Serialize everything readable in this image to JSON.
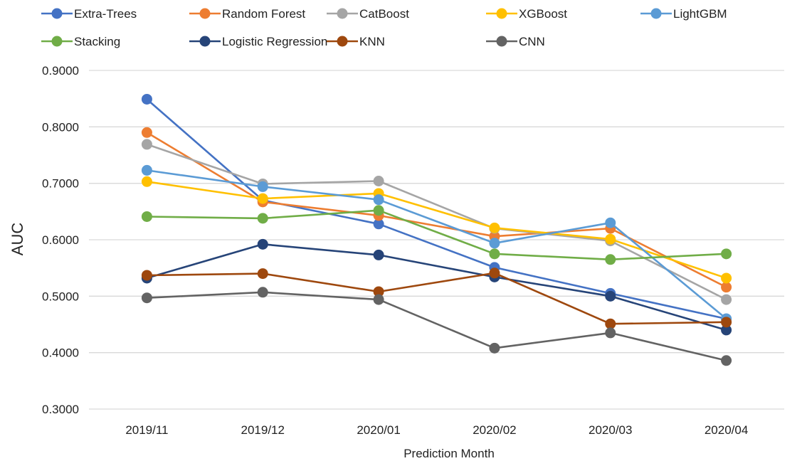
{
  "chart_data": {
    "type": "line",
    "xlabel": "Prediction Month",
    "ylabel": "AUC",
    "categories": [
      "2019/11",
      "2019/12",
      "2020/01",
      "2020/02",
      "2020/03",
      "2020/04"
    ],
    "ylim": [
      0.3,
      0.9
    ],
    "yticks": [
      "0.3000",
      "0.4000",
      "0.5000",
      "0.6000",
      "0.7000",
      "0.8000",
      "0.9000"
    ],
    "grid": true,
    "legend_position": "top",
    "series": [
      {
        "name": "Extra-Trees",
        "color": "#4472C4",
        "values": [
          0.849,
          0.67,
          0.628,
          0.551,
          0.505,
          0.46
        ]
      },
      {
        "name": "Random Forest",
        "color": "#ED7D31",
        "values": [
          0.79,
          0.667,
          0.643,
          0.606,
          0.62,
          0.516
        ]
      },
      {
        "name": "CatBoost",
        "color": "#A5A5A5",
        "values": [
          0.769,
          0.699,
          0.704,
          0.62,
          0.598,
          0.494
        ]
      },
      {
        "name": "XGBoost",
        "color": "#FFC000",
        "values": [
          0.703,
          0.673,
          0.682,
          0.621,
          0.601,
          0.532
        ]
      },
      {
        "name": "LightGBM",
        "color": "#5B9BD5",
        "values": [
          0.723,
          0.694,
          0.671,
          0.594,
          0.63,
          0.46
        ]
      },
      {
        "name": "Stacking",
        "color": "#70AD47",
        "values": [
          0.641,
          0.638,
          0.652,
          0.575,
          0.565,
          0.575
        ]
      },
      {
        "name": "Logistic Regression",
        "color": "#264478",
        "values": [
          0.532,
          0.592,
          0.573,
          0.534,
          0.5,
          0.44
        ]
      },
      {
        "name": "KNN",
        "color": "#9E480E",
        "values": [
          0.537,
          0.54,
          0.508,
          0.541,
          0.451,
          0.454
        ]
      },
      {
        "name": "CNN",
        "color": "#636363",
        "values": [
          0.497,
          0.507,
          0.494,
          0.408,
          0.435,
          0.386
        ]
      }
    ]
  }
}
